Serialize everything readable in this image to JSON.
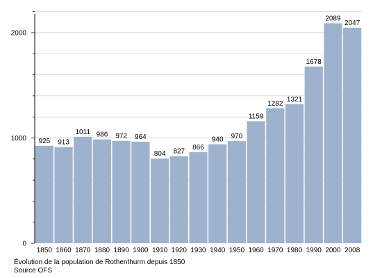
{
  "chart_data": {
    "type": "bar",
    "categories": [
      "1850",
      "1860",
      "1870",
      "1880",
      "1890",
      "1900",
      "1910",
      "1920",
      "1930",
      "1940",
      "1950",
      "1960",
      "1970",
      "1980",
      "1990",
      "2000",
      "2008"
    ],
    "values": [
      925,
      913,
      1011,
      986,
      972,
      964,
      804,
      827,
      866,
      940,
      970,
      1159,
      1282,
      1321,
      1678,
      2089,
      2047
    ],
    "title": "Évolution de la population de Rothenthurm depuis 1850",
    "subtitle": "Source OFS",
    "y_ticks": [
      "0",
      "1000",
      "2000"
    ],
    "ylim": [
      0,
      2200
    ],
    "grid": true,
    "legend": "none",
    "colors": {
      "bar": "#9db3cd",
      "grid": "#bfbfbf",
      "axis": "#000000"
    }
  }
}
